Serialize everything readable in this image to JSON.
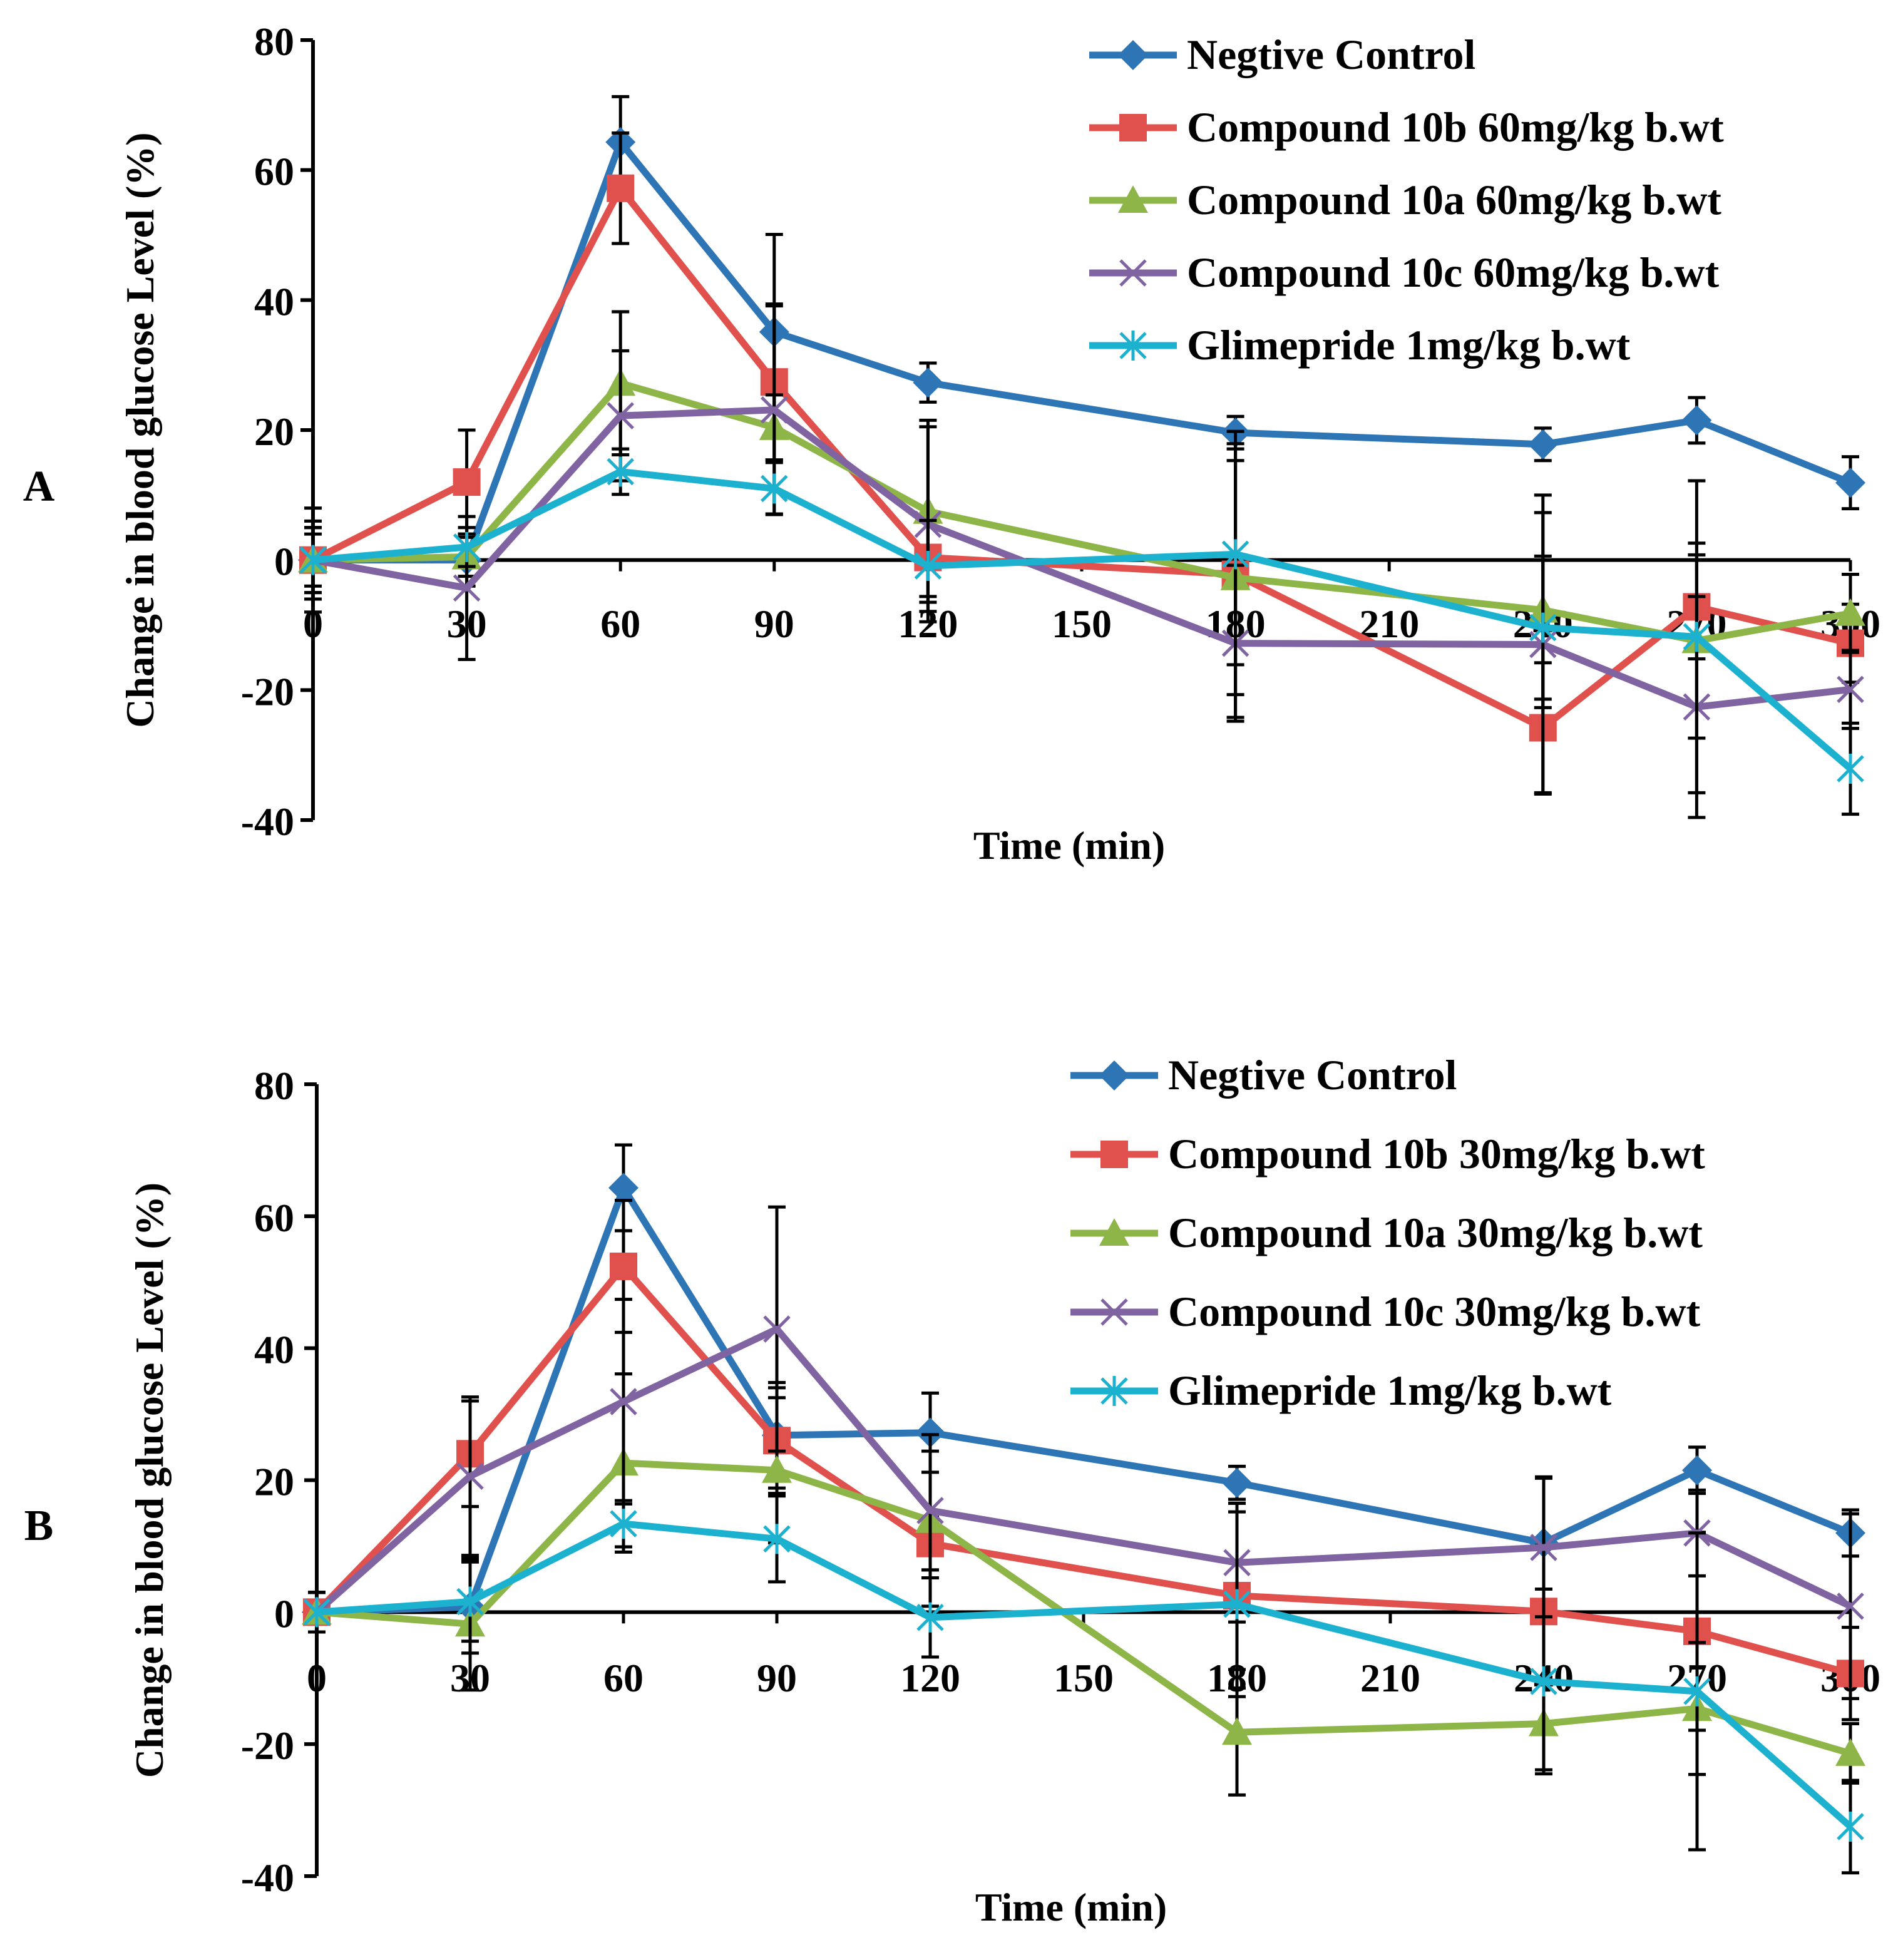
{
  "panels_meta": {
    "colors": {
      "negative_control": "#2E75B6",
      "compound_10b": "#E0504D",
      "compound_10a": "#8DB547",
      "compound_10c": "#8064A2",
      "glimepride": "#1CB2CF"
    },
    "marker_icons": [
      "diamond-marker-icon",
      "square-marker-icon",
      "triangle-marker-icon",
      "x-marker-icon",
      "asterisk-marker-icon"
    ]
  },
  "chart_data": [
    {
      "panel_label": "A",
      "type": "line",
      "title": "",
      "xlabel": "Time (min)",
      "ylabel": "Change in blood glucose  Level (%)",
      "x": [
        0,
        30,
        60,
        90,
        120,
        180,
        240,
        270,
        300
      ],
      "xlim": [
        0,
        300
      ],
      "ylim": [
        -40,
        80
      ],
      "yticks": [
        -40,
        -20,
        0,
        20,
        40,
        60,
        80
      ],
      "xtick_labels": [
        "0",
        "30",
        "60",
        "90",
        "120",
        "150",
        "180",
        "210",
        "240",
        "270",
        "300"
      ],
      "xtick_values": [
        0,
        30,
        60,
        90,
        120,
        150,
        180,
        210,
        240,
        270,
        300
      ],
      "legend_position": "top-right",
      "series": [
        {
          "key": "negative_control",
          "name": "Negtive Control",
          "marker": "diamond",
          "values": [
            0,
            0,
            64.3,
            35.1,
            27.3,
            19.6,
            17.8,
            21.5,
            11.9
          ],
          "errors": [
            6,
            4,
            7,
            15,
            3,
            2.5,
            2.5,
            3.5,
            4
          ]
        },
        {
          "key": "compound_10b",
          "name": "Compound 10b 60mg/kg b.wt",
          "marker": "square",
          "values": [
            0,
            12,
            57.2,
            27.4,
            0.4,
            -2.2,
            -25.8,
            -7.2,
            -12.8
          ],
          "errors": [
            4,
            8,
            8.5,
            12,
            6,
            22,
            10,
            8,
            6
          ]
        },
        {
          "key": "compound_10a",
          "name": "Compound 10a 60mg/kg b.wt",
          "marker": "triangle",
          "values": [
            0,
            0.5,
            27.2,
            20.4,
            7.5,
            -2.7,
            -7.7,
            -12.4,
            -8.2
          ],
          "errors": [
            5,
            3,
            11,
            5,
            14,
            18,
            15,
            15,
            6
          ],
          "label_note": ""
        },
        {
          "key": "compound_10c",
          "name": "Compound 10c 60mg/kg b.wt",
          "marker": "x",
          "values": [
            0,
            -4.3,
            22.2,
            23.1,
            5.5,
            -12.8,
            -13,
            -22.6,
            -19.9
          ],
          "errors": [
            5,
            11,
            10,
            16,
            15,
            12,
            23,
            17,
            6
          ]
        },
        {
          "key": "glimepride",
          "name": "Glimepride 1mg/kg b.wt",
          "marker": "asterisk",
          "values": [
            0,
            2,
            13.6,
            11,
            -0.9,
            0.9,
            -10.4,
            -11.8,
            -32.1
          ],
          "errors": [
            8,
            3,
            3.5,
            4,
            7,
            17,
            11,
            24,
            7
          ]
        }
      ]
    },
    {
      "panel_label": "B",
      "type": "line",
      "title": "",
      "xlabel": "Time (min)",
      "ylabel": "Change in blood glucose  Level (%)",
      "x": [
        0,
        30,
        60,
        90,
        120,
        180,
        240,
        270,
        300
      ],
      "xlim": [
        0,
        300
      ],
      "ylim": [
        -40,
        80
      ],
      "yticks": [
        -40,
        -20,
        0,
        20,
        40,
        60,
        80
      ],
      "xtick_labels": [
        "0",
        "30",
        "60",
        "90",
        "120",
        "150",
        "180",
        "210",
        "240",
        "270",
        "300"
      ],
      "xtick_values": [
        0,
        30,
        60,
        90,
        120,
        150,
        180,
        210,
        240,
        270,
        300
      ],
      "legend_position": "top-right",
      "series": [
        {
          "key": "negative_control",
          "name": "Negtive Control",
          "marker": "diamond",
          "values": [
            0,
            0.8,
            64.3,
            26.8,
            27.2,
            19.6,
            10.5,
            21.5,
            12
          ],
          "errors": [
            3,
            7,
            6.5,
            8,
            6,
            2.5,
            10,
            3.5,
            3.5
          ]
        },
        {
          "key": "compound_10b",
          "name": "Compound 10b 30mg/kg b.wt",
          "marker": "square",
          "values": [
            0,
            24,
            52.4,
            26,
            10.4,
            2.5,
            0.1,
            -2.9,
            -9.3
          ],
          "errors": [
            3,
            8,
            10,
            8,
            4,
            14,
            10,
            15,
            7
          ]
        },
        {
          "key": "compound_10a",
          "name": "Compound 10a 30mg/kg b.wt",
          "marker": "triangle",
          "values": [
            0,
            -1.8,
            22.6,
            21.5,
            13.9,
            -18.2,
            -16.9,
            -14.6,
            -21.4
          ],
          "errors": [
            3,
            10,
            13.5,
            11,
            13,
            9.5,
            7,
            10,
            4.5
          ]
        },
        {
          "key": "compound_10c",
          "name": "Compound 10c 30mg/kg b.wt",
          "marker": "x",
          "values": [
            0,
            20.6,
            31.9,
            42.9,
            15.4,
            7.5,
            9.8,
            12,
            0.9
          ],
          "errors": [
            3,
            12,
            15.5,
            18.5,
            9,
            9,
            10.5,
            6.5,
            14
          ]
        },
        {
          "key": "glimepride",
          "name": "Glimepride 1mg/kg b.wt",
          "marker": "asterisk",
          "values": [
            0,
            1.6,
            13.4,
            11.1,
            -0.8,
            1.2,
            -10.5,
            -12,
            -32.5
          ],
          "errors": [
            3,
            6,
            3.5,
            6.5,
            6,
            14,
            14,
            24,
            7
          ]
        }
      ]
    }
  ]
}
